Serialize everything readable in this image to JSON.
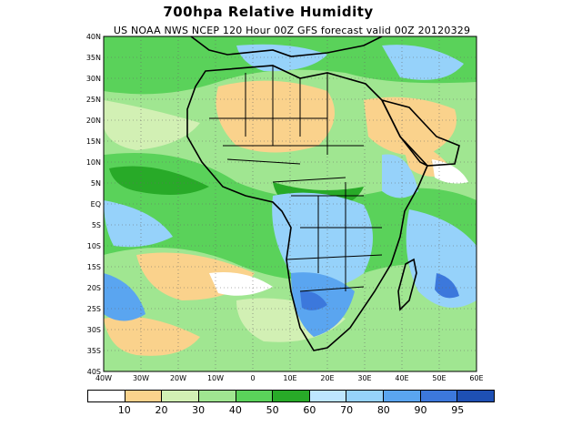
{
  "title": "700hpa Relative Humidity",
  "subtitle": "US NOAA NWS NCEP 120 Hour 00Z GFS forecast valid 00Z 20120329",
  "lat_labels": [
    "40N",
    "35N",
    "30N",
    "25N",
    "20N",
    "15N",
    "10N",
    "5N",
    "EQ",
    "5S",
    "10S",
    "15S",
    "20S",
    "25S",
    "30S",
    "35S",
    "40S"
  ],
  "lon_labels": [
    "40W",
    "30W",
    "20W",
    "10W",
    "0",
    "10E",
    "20E",
    "30E",
    "40E",
    "50E",
    "60E"
  ],
  "legend": {
    "colors": [
      "#ffffff",
      "#fad28c",
      "#d2f0b4",
      "#a0e691",
      "#5ad25a",
      "#28aa28",
      "#bee6ff",
      "#96d2fa",
      "#5aa5f0",
      "#3c78dc",
      "#1e50b4"
    ],
    "labels": [
      "10",
      "20",
      "30",
      "40",
      "50",
      "60",
      "70",
      "80",
      "90",
      "95"
    ]
  },
  "map_palette": {
    "ocean_dry": "#d2f0b4",
    "moist": "#5ad25a",
    "very_moist": "#28aa28",
    "dry": "#fad28c",
    "very_dry": "#ffffff",
    "humid_blue": "#96d2fa",
    "humid_dark": "#5aa5f0"
  }
}
